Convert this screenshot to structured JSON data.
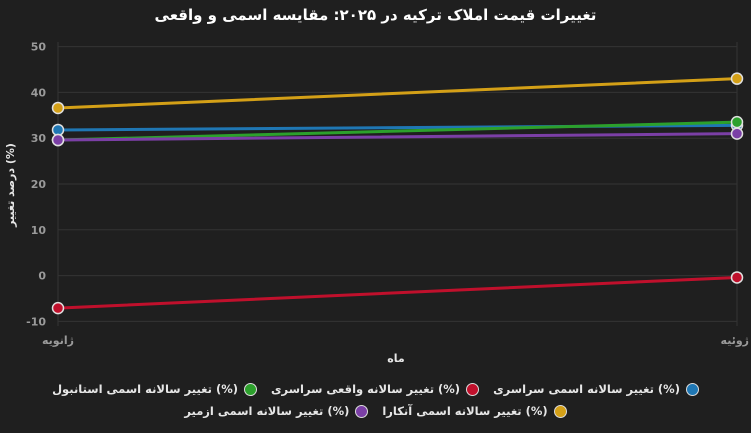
{
  "chart_data": {
    "type": "line",
    "title": "تغییرات قیمت املاک ترکیه در ۲۰۲۵: مقایسه اسمی و واقعی",
    "xlabel": "ماه",
    "ylabel": "درصد تغییر (%)",
    "categories": [
      "ژانویه",
      "ژوئیه"
    ],
    "ylim": [
      -11,
      51
    ],
    "yticks": [
      -10,
      0,
      10,
      20,
      30,
      40,
      50
    ],
    "grid": true,
    "legend_position": "bottom",
    "series": [
      {
        "name": "(%) تغییر سالانه اسمی سراسری",
        "color": "#1f77b4",
        "values": [
          31.8,
          32.8
        ]
      },
      {
        "name": "(%) تغییر سالانه واقعی سراسری",
        "color": "#c0102c",
        "values": [
          -7.1,
          -0.4
        ]
      },
      {
        "name": "(%) تغییر سالانه اسمی استانبول",
        "color": "#2ca02c",
        "values": [
          29.6,
          33.5
        ]
      },
      {
        "name": "(%) تغییر سالانه اسمی آنکارا",
        "color": "#d4a017",
        "values": [
          36.6,
          43.0
        ]
      },
      {
        "name": "(%) تغییر سالانه اسمی ازمیر",
        "color": "#7b3fa6",
        "values": [
          29.6,
          31.0
        ]
      }
    ]
  }
}
